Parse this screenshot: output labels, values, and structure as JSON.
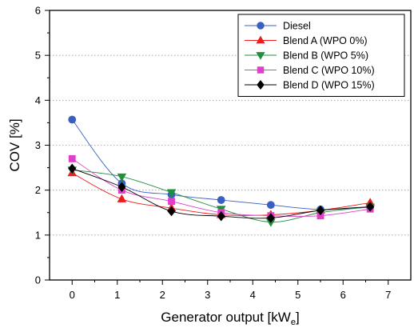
{
  "chart_data": {
    "type": "line",
    "xlabel": "Generator output [kW",
    "xlabel_sub": "e",
    "xlabel_suffix": "]",
    "ylabel": "COV [%]",
    "xlim": [
      -0.5,
      7.5
    ],
    "ylim": [
      0,
      6
    ],
    "xticks": [
      "0",
      "1",
      "2",
      "3",
      "4",
      "5",
      "6",
      "7"
    ],
    "yticks": [
      "0",
      "1",
      "2",
      "3",
      "4",
      "5",
      "6"
    ],
    "grid": "horizontal-dotted",
    "legend_position": "top-right",
    "x": [
      0,
      1.1,
      2.2,
      3.3,
      4.4,
      5.5,
      6.6
    ],
    "series": [
      {
        "name": "Diesel",
        "values": [
          3.57,
          2.15,
          1.9,
          1.78,
          1.67,
          1.57,
          1.62
        ],
        "color": "#3b5fc0",
        "marker": "circle"
      },
      {
        "name": "Blend A (WPO 0%)",
        "values": [
          2.38,
          1.8,
          1.6,
          1.45,
          1.45,
          1.55,
          1.72
        ],
        "color": "#ee1c1c",
        "marker": "triangle-up"
      },
      {
        "name": "Blend B (WPO 5%)",
        "values": [
          2.45,
          2.3,
          1.95,
          1.58,
          1.29,
          1.5,
          1.63
        ],
        "color": "#1f8f3a",
        "marker": "triangle-down"
      },
      {
        "name": "Blend C (WPO 10%)",
        "values": [
          2.7,
          2.0,
          1.75,
          1.5,
          1.43,
          1.43,
          1.58
        ],
        "color": "#e040c8",
        "marker": "square"
      },
      {
        "name": "Blend D (WPO 15%)",
        "values": [
          2.48,
          2.07,
          1.53,
          1.42,
          1.38,
          1.55,
          1.63
        ],
        "color": "#000000",
        "marker": "diamond"
      }
    ]
  }
}
